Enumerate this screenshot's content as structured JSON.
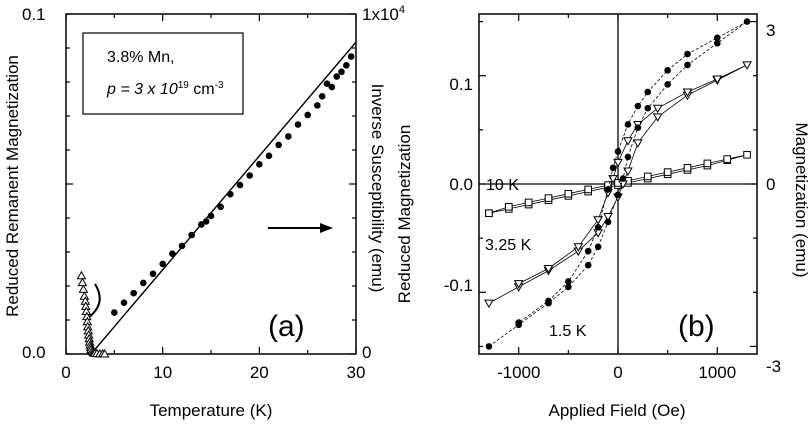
{
  "chart_data": [
    {
      "type": "scatter",
      "panel_label": "(a)",
      "xlabel": "Temperature (K)",
      "ylabel": "Reduced Remanent Magnetization",
      "ylabel_right": "Inverse Susceptibility (emu)",
      "xlim": [
        0,
        30
      ],
      "ylim": [
        0,
        0.1
      ],
      "ylim_right": [
        0,
        10000
      ],
      "x_ticks": [
        "0",
        "10",
        "20",
        "30"
      ],
      "y_ticks": [
        "0.0",
        "0.1"
      ],
      "y_ticks_right": [
        "0",
        "1x10"
      ],
      "y_tick_right_exp": "4",
      "legend_box": {
        "line1": "3.8% Mn,",
        "line2_prefix": "p = 3 x 10",
        "line2_exp": "19",
        "line2_unit": " cm",
        "line2_unit_exp": "-3"
      },
      "series": [
        {
          "marker": "triangle-open",
          "axis": "left",
          "x": [
            1.6,
            1.7,
            1.8,
            1.9,
            2.0,
            2.05,
            2.1,
            2.15,
            2.2,
            2.25,
            2.3,
            2.35,
            2.4,
            2.45,
            2.5,
            2.55,
            2.6,
            2.7,
            2.8,
            2.9,
            3.0,
            3.2,
            3.5,
            3.8,
            4.0
          ],
          "y": [
            0.023,
            0.021,
            0.019,
            0.017,
            0.0155,
            0.014,
            0.0125,
            0.011,
            0.0095,
            0.008,
            0.0068,
            0.0056,
            0.0045,
            0.0035,
            0.0026,
            0.0019,
            0.0013,
            0.0008,
            0.0005,
            0.0003,
            0.0002,
            0.0001,
            5e-05,
            2e-05,
            0.0
          ]
        },
        {
          "marker": "filled-circle",
          "axis": "right",
          "x": [
            5,
            6,
            7,
            8,
            9,
            10,
            11,
            12,
            13,
            14,
            14.5,
            15,
            16,
            17,
            18,
            19,
            20,
            21,
            22,
            23,
            24,
            25,
            26,
            26.5,
            27,
            27.5,
            28,
            28.5,
            29,
            29.5
          ],
          "y": [
            1220,
            1510,
            1790,
            2090,
            2360,
            2650,
            2950,
            3180,
            3500,
            3810,
            3900,
            4060,
            4330,
            4700,
            4970,
            5250,
            5580,
            5830,
            6150,
            6400,
            6750,
            7030,
            7310,
            7580,
            7950,
            7850,
            8160,
            8300,
            8490,
            8750
          ]
        }
      ],
      "fit_line": {
        "x": [
          2.6,
          30.5
        ],
        "y": [
          0,
          9340
        ]
      },
      "annotations": [
        "left-arrow-bracket",
        "right-arrow"
      ]
    },
    {
      "type": "line",
      "panel_label": "(b)",
      "xlabel": "Applied Field (Oe)",
      "ylabel": "Reduced Magnetization",
      "ylabel_right": "Magnetization (emu)",
      "xlim": [
        -1400,
        1400
      ],
      "ylim": [
        -0.157,
        0.157
      ],
      "ylim_right": [
        -3.14,
        3.14
      ],
      "x_ticks": [
        "-1000",
        "0",
        "1000"
      ],
      "y_ticks": [
        "-0.1",
        "0.0",
        "0.1"
      ],
      "y_ticks_right": [
        "-3",
        "0",
        "3"
      ],
      "series": [
        {
          "name": "10 K",
          "marker": "square-open",
          "x": [
            -1300,
            -1100,
            -900,
            -700,
            -500,
            -300,
            -100,
            0,
            100,
            300,
            500,
            700,
            900,
            1100,
            1300,
            1100,
            900,
            700,
            500,
            300,
            100,
            0,
            -100,
            -300,
            -500,
            -700,
            -900,
            -1100,
            -1300
          ],
          "y": [
            -0.027,
            -0.023,
            -0.019,
            -0.015,
            -0.011,
            -0.007,
            -0.003,
            -0.001,
            0.001,
            0.005,
            0.009,
            0.013,
            0.017,
            0.022,
            0.027,
            0.023,
            0.019,
            0.015,
            0.011,
            0.007,
            0.003,
            0.001,
            -0.001,
            -0.005,
            -0.009,
            -0.013,
            -0.017,
            -0.021,
            -0.027
          ]
        },
        {
          "name": "3.25 K",
          "marker": "triangle-down-open",
          "x": [
            -1300,
            -1000,
            -700,
            -400,
            -200,
            -100,
            0,
            50,
            100,
            200,
            400,
            700,
            1000,
            1300,
            1000,
            700,
            400,
            200,
            100,
            0,
            -50,
            -100,
            -200,
            -400,
            -700,
            -1000
          ],
          "y": [
            -0.11,
            -0.095,
            -0.08,
            -0.062,
            -0.045,
            -0.03,
            -0.012,
            0.0,
            0.012,
            0.038,
            0.062,
            0.082,
            0.096,
            0.11,
            0.097,
            0.085,
            0.07,
            0.055,
            0.04,
            0.02,
            0.005,
            -0.008,
            -0.033,
            -0.058,
            -0.078,
            -0.092
          ]
        },
        {
          "name": "1.5 K",
          "marker": "filled-circle",
          "x": [
            -1300,
            -1000,
            -700,
            -500,
            -300,
            -200,
            -100,
            0,
            50,
            100,
            200,
            300,
            500,
            700,
            1000,
            1300,
            1000,
            700,
            500,
            300,
            200,
            100,
            0,
            -50,
            -100,
            -200,
            -300,
            -500,
            -700,
            -1000
          ],
          "y": [
            -0.15,
            -0.13,
            -0.11,
            -0.095,
            -0.075,
            -0.058,
            -0.035,
            -0.01,
            0.005,
            0.025,
            0.052,
            0.07,
            0.092,
            0.11,
            0.13,
            0.15,
            0.135,
            0.12,
            0.105,
            0.085,
            0.072,
            0.055,
            0.03,
            0.015,
            -0.005,
            -0.04,
            -0.062,
            -0.09,
            -0.108,
            -0.128
          ]
        }
      ],
      "labels": [
        "10 K",
        "3.25 K",
        "1.5 K"
      ]
    }
  ]
}
